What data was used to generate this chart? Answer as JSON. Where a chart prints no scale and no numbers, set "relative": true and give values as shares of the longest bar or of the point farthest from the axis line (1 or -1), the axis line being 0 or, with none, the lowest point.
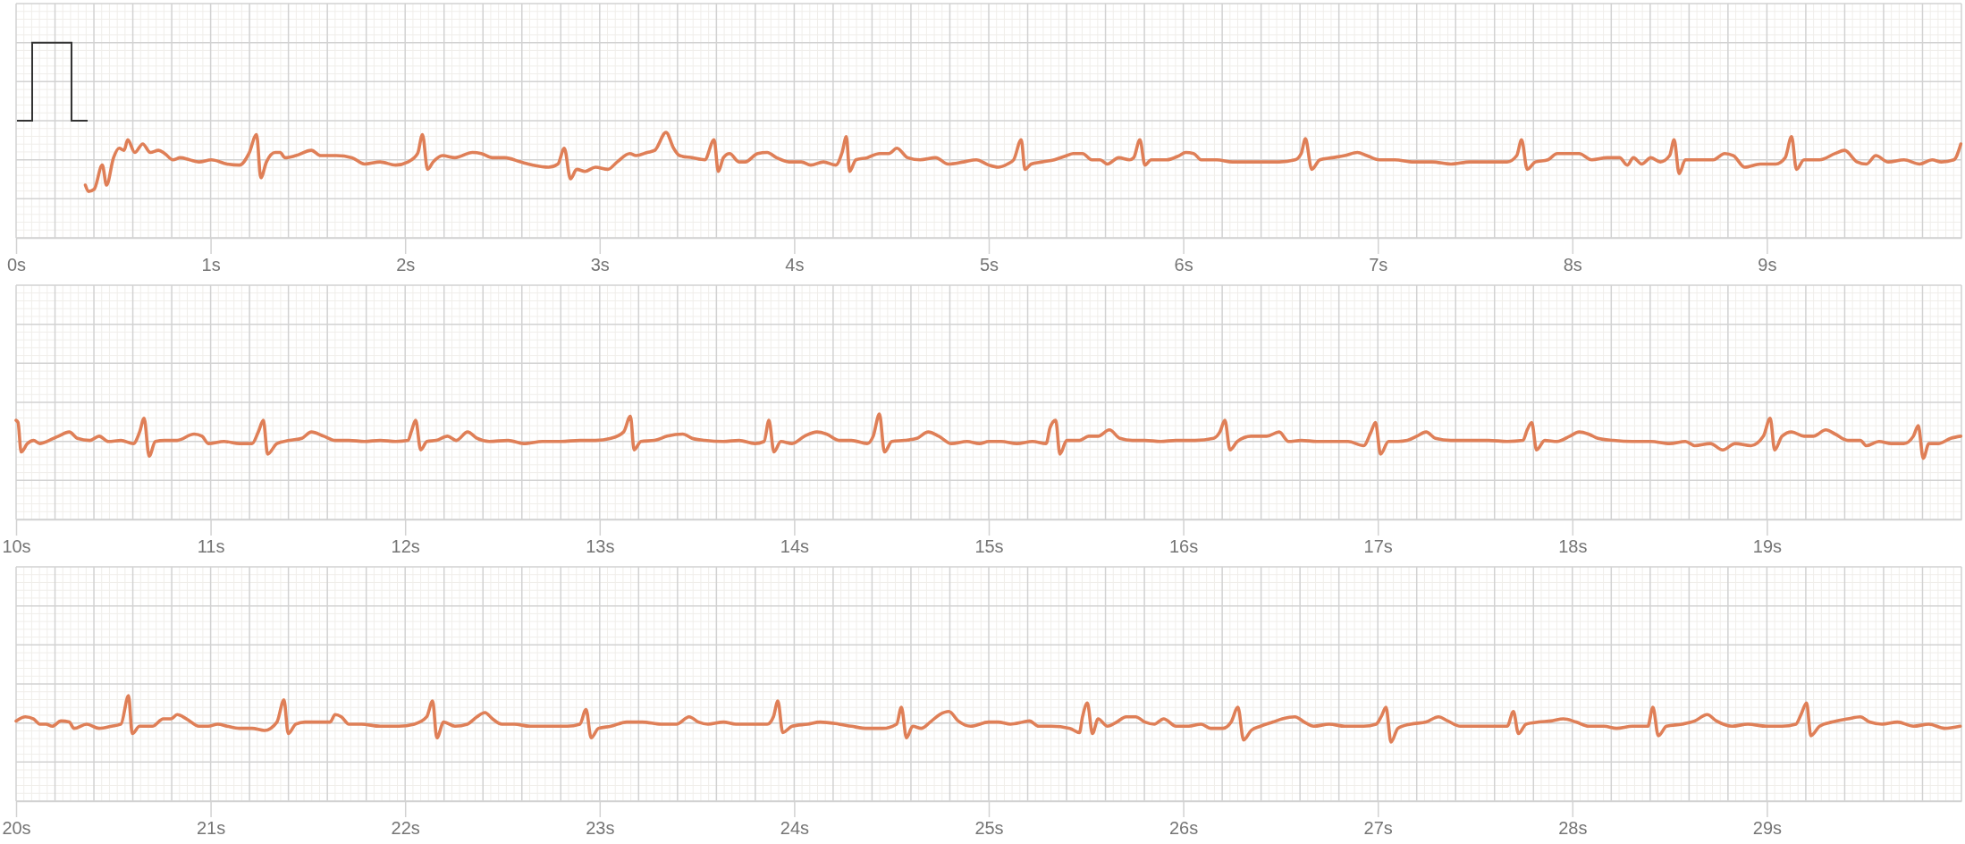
{
  "chart_data": [
    {
      "type": "line",
      "relative": true,
      "xlim": [
        0,
        10
      ],
      "grid": true,
      "xticks": [
        {
          "value": 0,
          "label": "0s"
        },
        {
          "value": 0.2,
          "label": null
        },
        {
          "value": 0.4,
          "label": null
        },
        {
          "value": 0.6,
          "label": null
        },
        {
          "value": 0.8,
          "label": null
        },
        {
          "value": 1,
          "label": "1s"
        },
        {
          "value": 1.2,
          "label": null
        },
        {
          "value": 1.4,
          "label": null
        },
        {
          "value": 1.6,
          "label": null
        },
        {
          "value": 1.8,
          "label": null
        },
        {
          "value": 2,
          "label": "2s"
        },
        {
          "value": 2.2,
          "label": null
        },
        {
          "value": 2.4,
          "label": null
        },
        {
          "value": 2.6,
          "label": null
        },
        {
          "value": 2.8,
          "label": null
        },
        {
          "value": 3,
          "label": "3s"
        },
        {
          "value": 3.2,
          "label": null
        },
        {
          "value": 3.4,
          "label": null
        },
        {
          "value": 3.6,
          "label": null
        },
        {
          "value": 3.8,
          "label": null
        },
        {
          "value": 4,
          "label": "4s"
        },
        {
          "value": 4.2,
          "label": null
        },
        {
          "value": 4.4,
          "label": null
        },
        {
          "value": 4.6,
          "label": null
        },
        {
          "value": 4.8,
          "label": null
        },
        {
          "value": 5,
          "label": "5s"
        },
        {
          "value": 5.2,
          "label": null
        },
        {
          "value": 5.4,
          "label": null
        },
        {
          "value": 5.6,
          "label": null
        },
        {
          "value": 5.8,
          "label": null
        },
        {
          "value": 6,
          "label": "6s"
        },
        {
          "value": 6.2,
          "label": null
        },
        {
          "value": 6.4,
          "label": null
        },
        {
          "value": 6.6,
          "label": null
        },
        {
          "value": 6.8,
          "label": null
        },
        {
          "value": 7,
          "label": "7s"
        },
        {
          "value": 7.2,
          "label": null
        },
        {
          "value": 7.4,
          "label": null
        },
        {
          "value": 7.6,
          "label": null
        },
        {
          "value": 7.8,
          "label": null
        },
        {
          "value": 8,
          "label": "8s"
        },
        {
          "value": 8.2,
          "label": null
        },
        {
          "value": 8.4,
          "label": null
        },
        {
          "value": 8.6,
          "label": null
        },
        {
          "value": 8.8,
          "label": null
        },
        {
          "value": 9,
          "label": "9s"
        },
        {
          "value": 9.2,
          "label": null
        },
        {
          "value": 9.4,
          "label": null
        },
        {
          "value": 9.6,
          "label": null
        },
        {
          "value": 9.8,
          "label": null
        },
        {
          "value": 10,
          "label": null
        }
      ],
      "series": [
        {
          "color": "#df7f57",
          "x": [
            0.356,
            0.372,
            0.401,
            0.443,
            0.465,
            0.501,
            0.53,
            0.555,
            0.574,
            0.61,
            0.651,
            0.69,
            0.732,
            0.764,
            0.806,
            0.844,
            0.892,
            0.94,
            1.004,
            1.085,
            1.149,
            1.197,
            1.236,
            1.258,
            1.287,
            1.332,
            1.357,
            1.383,
            1.438,
            1.518,
            1.566,
            1.646,
            1.727,
            1.791,
            1.871,
            1.951,
            2.015,
            2.064,
            2.089,
            2.115,
            2.144,
            2.192,
            2.256,
            2.346,
            2.391,
            2.449,
            2.513,
            2.593,
            2.657,
            2.737,
            2.785,
            2.818,
            2.85,
            2.882,
            2.924,
            2.978,
            3.042,
            3.09,
            3.155,
            3.187,
            3.245,
            3.283,
            3.341,
            3.38,
            3.411,
            3.476,
            3.54,
            3.588,
            3.61,
            3.636,
            3.668,
            3.716,
            3.748,
            3.812,
            3.861,
            3.909,
            3.973,
            4.037,
            4.085,
            4.15,
            4.214,
            4.246,
            4.268,
            4.285,
            4.317,
            4.375,
            4.439,
            4.487,
            4.528,
            4.583,
            4.647,
            4.727,
            4.791,
            4.871,
            4.936,
            5,
            5.048,
            5.096,
            5.128,
            5.167,
            5.186,
            5.218,
            5.273,
            5.337,
            5.401,
            5.434,
            5.482,
            5.53,
            5.572,
            5.61,
            5.668,
            5.723,
            5.745,
            5.777,
            5.803,
            5.835,
            5.915,
            5.979,
            6.012,
            6.053,
            6.092,
            6.172,
            6.252,
            6.333,
            6.413,
            6.493,
            6.574,
            6.606,
            6.628,
            6.66,
            6.702,
            6.766,
            6.83,
            6.895,
            6.943,
            7.007,
            7.087,
            7.184,
            7.28,
            7.376,
            7.473,
            7.569,
            7.665,
            7.714,
            7.739,
            7.768,
            7.81,
            7.874,
            7.922,
            7.987,
            8.035,
            8.099,
            8.179,
            8.243,
            8.282,
            8.314,
            8.356,
            8.404,
            8.452,
            8.5,
            8.523,
            8.549,
            8.581,
            8.645,
            8.725,
            8.783,
            8.828,
            8.886,
            8.966,
            9.046,
            9.094,
            9.127,
            9.152,
            9.191,
            9.271,
            9.351,
            9.399,
            9.464,
            9.512,
            9.56,
            9.624,
            9.705,
            9.785,
            9.849,
            9.897,
            9.961,
            9.997
          ],
          "values": [
            0.5,
            0.44,
            0.46,
            0.69,
            0.5,
            0.76,
            0.85,
            0.83,
            0.93,
            0.81,
            0.89,
            0.81,
            0.83,
            0.8,
            0.74,
            0.76,
            0.74,
            0.72,
            0.74,
            0.7,
            0.69,
            0.8,
            0.98,
            0.57,
            0.72,
            0.81,
            0.81,
            0.76,
            0.78,
            0.83,
            0.78,
            0.78,
            0.76,
            0.7,
            0.72,
            0.69,
            0.72,
            0.8,
            0.98,
            0.65,
            0.72,
            0.78,
            0.76,
            0.81,
            0.8,
            0.76,
            0.76,
            0.72,
            0.69,
            0.67,
            0.7,
            0.85,
            0.56,
            0.65,
            0.63,
            0.67,
            0.65,
            0.72,
            0.8,
            0.78,
            0.81,
            0.83,
            1,
            0.85,
            0.78,
            0.76,
            0.74,
            0.93,
            0.63,
            0.76,
            0.8,
            0.72,
            0.72,
            0.8,
            0.81,
            0.76,
            0.72,
            0.72,
            0.69,
            0.72,
            0.69,
            0.81,
            0.96,
            0.63,
            0.74,
            0.76,
            0.8,
            0.8,
            0.85,
            0.76,
            0.74,
            0.76,
            0.7,
            0.72,
            0.74,
            0.69,
            0.67,
            0.7,
            0.74,
            0.93,
            0.65,
            0.7,
            0.72,
            0.74,
            0.78,
            0.8,
            0.8,
            0.74,
            0.74,
            0.7,
            0.76,
            0.74,
            0.76,
            0.93,
            0.69,
            0.74,
            0.74,
            0.78,
            0.81,
            0.8,
            0.74,
            0.74,
            0.72,
            0.72,
            0.72,
            0.72,
            0.74,
            0.8,
            0.94,
            0.65,
            0.74,
            0.76,
            0.78,
            0.81,
            0.78,
            0.74,
            0.74,
            0.72,
            0.72,
            0.7,
            0.72,
            0.72,
            0.72,
            0.78,
            0.93,
            0.65,
            0.72,
            0.74,
            0.8,
            0.8,
            0.8,
            0.74,
            0.76,
            0.76,
            0.69,
            0.76,
            0.7,
            0.76,
            0.72,
            0.78,
            0.93,
            0.61,
            0.74,
            0.74,
            0.74,
            0.8,
            0.78,
            0.67,
            0.7,
            0.7,
            0.76,
            0.96,
            0.65,
            0.74,
            0.74,
            0.8,
            0.83,
            0.72,
            0.7,
            0.78,
            0.72,
            0.74,
            0.7,
            0.74,
            0.72,
            0.74,
            0.89
          ]
        }
      ]
    },
    {
      "type": "line",
      "relative": true,
      "xlim": [
        10,
        20
      ],
      "grid": true,
      "xticks": [
        {
          "value": 10,
          "label": "10s"
        },
        {
          "value": 10.2,
          "label": null
        },
        {
          "value": 10.4,
          "label": null
        },
        {
          "value": 10.6,
          "label": null
        },
        {
          "value": 10.8,
          "label": null
        },
        {
          "value": 11,
          "label": "11s"
        },
        {
          "value": 11.2,
          "label": null
        },
        {
          "value": 11.4,
          "label": null
        },
        {
          "value": 11.6,
          "label": null
        },
        {
          "value": 11.8,
          "label": null
        },
        {
          "value": 12,
          "label": "12s"
        },
        {
          "value": 12.2,
          "label": null
        },
        {
          "value": 12.4,
          "label": null
        },
        {
          "value": 12.6,
          "label": null
        },
        {
          "value": 12.8,
          "label": null
        },
        {
          "value": 13,
          "label": "13s"
        },
        {
          "value": 13.2,
          "label": null
        },
        {
          "value": 13.4,
          "label": null
        },
        {
          "value": 13.6,
          "label": null
        },
        {
          "value": 13.8,
          "label": null
        },
        {
          "value": 14,
          "label": "14s"
        },
        {
          "value": 14.2,
          "label": null
        },
        {
          "value": 14.4,
          "label": null
        },
        {
          "value": 14.6,
          "label": null
        },
        {
          "value": 14.8,
          "label": null
        },
        {
          "value": 15,
          "label": "15s"
        },
        {
          "value": 15.2,
          "label": null
        },
        {
          "value": 15.4,
          "label": null
        },
        {
          "value": 15.6,
          "label": null
        },
        {
          "value": 15.8,
          "label": null
        },
        {
          "value": 16,
          "label": "16s"
        },
        {
          "value": 16.2,
          "label": null
        },
        {
          "value": 16.4,
          "label": null
        },
        {
          "value": 16.6,
          "label": null
        },
        {
          "value": 16.8,
          "label": null
        },
        {
          "value": 17,
          "label": "17s"
        },
        {
          "value": 17.2,
          "label": null
        },
        {
          "value": 17.4,
          "label": null
        },
        {
          "value": 17.6,
          "label": null
        },
        {
          "value": 17.8,
          "label": null
        },
        {
          "value": 18,
          "label": "18s"
        },
        {
          "value": 18.2,
          "label": null
        },
        {
          "value": 18.4,
          "label": null
        },
        {
          "value": 18.6,
          "label": null
        },
        {
          "value": 18.8,
          "label": null
        },
        {
          "value": 19,
          "label": "19s"
        },
        {
          "value": 19.2,
          "label": null
        },
        {
          "value": 19.4,
          "label": null
        },
        {
          "value": 19.6,
          "label": null
        },
        {
          "value": 19.8,
          "label": null
        },
        {
          "value": 20,
          "label": null
        }
      ],
      "series": [
        {
          "color": "#df7f57",
          "x": [
            10,
            10.01,
            10.026,
            10.058,
            10.09,
            10.122,
            10.17,
            10.218,
            10.273,
            10.315,
            10.379,
            10.427,
            10.475,
            10.539,
            10.603,
            10.635,
            10.658,
            10.684,
            10.716,
            10.764,
            10.828,
            10.915,
            10.956,
            10.988,
            11.069,
            11.149,
            11.213,
            11.245,
            11.271,
            11.293,
            11.341,
            11.405,
            11.469,
            11.518,
            11.582,
            11.64,
            11.711,
            11.791,
            11.871,
            11.951,
            12.015,
            12.031,
            12.054,
            12.08,
            12.112,
            12.16,
            12.218,
            12.263,
            12.321,
            12.369,
            12.433,
            12.529,
            12.609,
            12.706,
            12.802,
            12.898,
            12.978,
            13.058,
            13.123,
            13.158,
            13.177,
            13.212,
            13.282,
            13.347,
            13.427,
            13.475,
            13.54,
            13.636,
            13.716,
            13.797,
            13.845,
            13.87,
            13.896,
            13.931,
            13.989,
            14.053,
            14.117,
            14.166,
            14.23,
            14.294,
            14.375,
            14.406,
            14.438,
            14.464,
            14.502,
            14.567,
            14.631,
            14.689,
            14.743,
            14.808,
            14.888,
            14.952,
            15,
            15.064,
            15.145,
            15.225,
            15.295,
            15.315,
            15.344,
            15.366,
            15.401,
            15.466,
            15.514,
            15.562,
            15.62,
            15.674,
            15.739,
            15.803,
            15.883,
            15.963,
            16.06,
            16.156,
            16.188,
            16.214,
            16.24,
            16.278,
            16.349,
            16.429,
            16.493,
            16.541,
            16.606,
            16.686,
            16.766,
            16.847,
            16.927,
            16.965,
            16.988,
            17.014,
            17.055,
            17.103,
            17.152,
            17.2,
            17.248,
            17.296,
            17.376,
            17.473,
            17.569,
            17.665,
            17.746,
            17.768,
            17.791,
            17.816,
            17.858,
            17.922,
            17.987,
            18.035,
            18.083,
            18.131,
            18.211,
            18.308,
            18.404,
            18.5,
            18.581,
            18.629,
            18.709,
            18.773,
            18.837,
            18.918,
            18.982,
            19.017,
            19.04,
            19.078,
            19.127,
            19.191,
            19.239,
            19.303,
            19.351,
            19.416,
            19.48,
            19.512,
            19.576,
            19.64,
            19.704,
            19.753,
            19.778,
            19.804,
            19.833,
            19.881,
            19.945,
            19.997
          ],
          "values": [
            0.94,
            0.92,
            0.64,
            0.72,
            0.75,
            0.72,
            0.75,
            0.79,
            0.83,
            0.77,
            0.75,
            0.79,
            0.74,
            0.75,
            0.72,
            0.83,
            0.96,
            0.6,
            0.74,
            0.75,
            0.75,
            0.81,
            0.79,
            0.72,
            0.74,
            0.72,
            0.72,
            0.83,
            0.94,
            0.62,
            0.72,
            0.75,
            0.77,
            0.83,
            0.79,
            0.75,
            0.75,
            0.74,
            0.75,
            0.74,
            0.75,
            0.83,
            0.94,
            0.66,
            0.74,
            0.75,
            0.79,
            0.75,
            0.83,
            0.77,
            0.74,
            0.75,
            0.72,
            0.74,
            0.74,
            0.75,
            0.75,
            0.77,
            0.83,
            0.98,
            0.66,
            0.74,
            0.75,
            0.79,
            0.81,
            0.77,
            0.75,
            0.74,
            0.75,
            0.72,
            0.74,
            0.94,
            0.64,
            0.74,
            0.72,
            0.79,
            0.83,
            0.81,
            0.75,
            0.75,
            0.72,
            0.79,
            1,
            0.64,
            0.74,
            0.75,
            0.77,
            0.83,
            0.79,
            0.72,
            0.74,
            0.72,
            0.74,
            0.74,
            0.72,
            0.74,
            0.72,
            0.87,
            0.94,
            0.62,
            0.75,
            0.75,
            0.79,
            0.79,
            0.85,
            0.77,
            0.75,
            0.75,
            0.74,
            0.75,
            0.75,
            0.77,
            0.83,
            0.94,
            0.66,
            0.74,
            0.79,
            0.79,
            0.83,
            0.74,
            0.75,
            0.74,
            0.74,
            0.74,
            0.7,
            0.83,
            0.92,
            0.62,
            0.74,
            0.74,
            0.75,
            0.79,
            0.83,
            0.77,
            0.75,
            0.75,
            0.75,
            0.74,
            0.75,
            0.85,
            0.92,
            0.66,
            0.75,
            0.74,
            0.79,
            0.83,
            0.81,
            0.77,
            0.75,
            0.74,
            0.74,
            0.72,
            0.74,
            0.7,
            0.72,
            0.66,
            0.72,
            0.7,
            0.79,
            0.96,
            0.66,
            0.79,
            0.83,
            0.79,
            0.79,
            0.85,
            0.81,
            0.75,
            0.75,
            0.7,
            0.74,
            0.72,
            0.72,
            0.79,
            0.89,
            0.58,
            0.72,
            0.72,
            0.77,
            0.79
          ]
        }
      ]
    },
    {
      "type": "line",
      "relative": true,
      "xlim": [
        20,
        30
      ],
      "grid": true,
      "xticks": [
        {
          "value": 20,
          "label": "20s"
        },
        {
          "value": 20.2,
          "label": null
        },
        {
          "value": 20.4,
          "label": null
        },
        {
          "value": 20.6,
          "label": null
        },
        {
          "value": 20.8,
          "label": null
        },
        {
          "value": 21,
          "label": "21s"
        },
        {
          "value": 21.2,
          "label": null
        },
        {
          "value": 21.4,
          "label": null
        },
        {
          "value": 21.6,
          "label": null
        },
        {
          "value": 21.8,
          "label": null
        },
        {
          "value": 22,
          "label": "22s"
        },
        {
          "value": 22.2,
          "label": null
        },
        {
          "value": 22.4,
          "label": null
        },
        {
          "value": 22.6,
          "label": null
        },
        {
          "value": 22.8,
          "label": null
        },
        {
          "value": 23,
          "label": "23s"
        },
        {
          "value": 23.2,
          "label": null
        },
        {
          "value": 23.4,
          "label": null
        },
        {
          "value": 23.6,
          "label": null
        },
        {
          "value": 23.8,
          "label": null
        },
        {
          "value": 24,
          "label": "24s"
        },
        {
          "value": 24.2,
          "label": null
        },
        {
          "value": 24.4,
          "label": null
        },
        {
          "value": 24.6,
          "label": null
        },
        {
          "value": 24.8,
          "label": null
        },
        {
          "value": 25,
          "label": "25s"
        },
        {
          "value": 25.2,
          "label": null
        },
        {
          "value": 25.4,
          "label": null
        },
        {
          "value": 25.6,
          "label": null
        },
        {
          "value": 25.8,
          "label": null
        },
        {
          "value": 26,
          "label": "26s"
        },
        {
          "value": 26.2,
          "label": null
        },
        {
          "value": 26.4,
          "label": null
        },
        {
          "value": 26.6,
          "label": null
        },
        {
          "value": 26.8,
          "label": null
        },
        {
          "value": 27,
          "label": "27s"
        },
        {
          "value": 27.2,
          "label": null
        },
        {
          "value": 27.4,
          "label": null
        },
        {
          "value": 27.6,
          "label": null
        },
        {
          "value": 27.8,
          "label": null
        },
        {
          "value": 28,
          "label": "28s"
        },
        {
          "value": 28.2,
          "label": null
        },
        {
          "value": 28.4,
          "label": null
        },
        {
          "value": 28.6,
          "label": null
        },
        {
          "value": 28.8,
          "label": null
        },
        {
          "value": 29,
          "label": "29s"
        },
        {
          "value": 29.2,
          "label": null
        },
        {
          "value": 29.4,
          "label": null
        },
        {
          "value": 29.6,
          "label": null
        },
        {
          "value": 29.8,
          "label": null
        },
        {
          "value": 30,
          "label": null
        }
      ],
      "series": [
        {
          "color": "#df7f57",
          "x": [
            20,
            20.048,
            20.09,
            20.122,
            20.154,
            20.186,
            20.231,
            20.273,
            20.298,
            20.363,
            20.427,
            20.491,
            20.539,
            20.578,
            20.597,
            20.635,
            20.7,
            20.757,
            20.796,
            20.828,
            20.876,
            20.94,
            20.988,
            21.037,
            21.085,
            21.149,
            21.213,
            21.277,
            21.341,
            21.377,
            21.399,
            21.438,
            21.486,
            21.55,
            21.614,
            21.64,
            21.672,
            21.711,
            21.775,
            21.871,
            21.967,
            22.047,
            22.111,
            22.141,
            22.163,
            22.198,
            22.256,
            22.32,
            22.369,
            22.41,
            22.449,
            22.497,
            22.561,
            22.641,
            22.737,
            22.834,
            22.898,
            22.93,
            22.956,
            22.994,
            23.058,
            23.139,
            23.219,
            23.315,
            23.395,
            23.46,
            23.508,
            23.556,
            23.636,
            23.7,
            23.78,
            23.861,
            23.893,
            23.916,
            23.941,
            23.989,
            24.069,
            24.134,
            24.23,
            24.294,
            24.375,
            24.455,
            24.526,
            24.551,
            24.577,
            24.609,
            24.653,
            24.699,
            24.747,
            24.795,
            24.843,
            24.907,
            25,
            25.048,
            25.112,
            25.177,
            25.209,
            25.257,
            25.321,
            25.417,
            25.466,
            25.482,
            25.507,
            25.533,
            25.562,
            25.61,
            25.658,
            25.706,
            25.755,
            25.803,
            25.851,
            25.899,
            25.963,
            26.028,
            26.092,
            26.14,
            26.204,
            26.246,
            26.281,
            26.31,
            26.349,
            26.397,
            26.461,
            26.509,
            26.574,
            26.622,
            26.67,
            26.75,
            26.83,
            26.927,
            26.991,
            27.017,
            27.042,
            27.068,
            27.103,
            27.168,
            27.248,
            27.312,
            27.36,
            27.425,
            27.505,
            27.585,
            27.665,
            27.697,
            27.723,
            27.762,
            27.826,
            27.89,
            27.954,
            28.019,
            28.083,
            28.163,
            28.227,
            28.308,
            28.388,
            28.414,
            28.442,
            28.484,
            28.564,
            28.629,
            28.693,
            28.741,
            28.821,
            28.902,
            28.998,
            29.078,
            29.149,
            29.175,
            29.204,
            29.226,
            29.271,
            29.335,
            29.416,
            29.48,
            29.528,
            29.592,
            29.672,
            29.753,
            29.833,
            29.913,
            29.994
          ],
          "values": [
            0.76,
            0.8,
            0.78,
            0.73,
            0.73,
            0.71,
            0.76,
            0.75,
            0.69,
            0.73,
            0.69,
            0.71,
            0.73,
            1,
            0.64,
            0.71,
            0.71,
            0.78,
            0.78,
            0.82,
            0.78,
            0.71,
            0.71,
            0.73,
            0.71,
            0.69,
            0.69,
            0.67,
            0.75,
            0.96,
            0.64,
            0.73,
            0.75,
            0.75,
            0.75,
            0.82,
            0.8,
            0.73,
            0.73,
            0.71,
            0.71,
            0.73,
            0.8,
            0.95,
            0.6,
            0.75,
            0.71,
            0.73,
            0.8,
            0.84,
            0.78,
            0.73,
            0.73,
            0.71,
            0.71,
            0.71,
            0.73,
            0.87,
            0.6,
            0.69,
            0.71,
            0.75,
            0.75,
            0.73,
            0.73,
            0.8,
            0.75,
            0.73,
            0.75,
            0.73,
            0.73,
            0.73,
            0.8,
            0.95,
            0.65,
            0.71,
            0.73,
            0.75,
            0.73,
            0.71,
            0.69,
            0.69,
            0.73,
            0.89,
            0.6,
            0.71,
            0.69,
            0.75,
            0.82,
            0.85,
            0.76,
            0.71,
            0.75,
            0.75,
            0.73,
            0.75,
            0.76,
            0.71,
            0.71,
            0.69,
            0.65,
            0.8,
            0.93,
            0.64,
            0.78,
            0.71,
            0.75,
            0.8,
            0.8,
            0.75,
            0.73,
            0.78,
            0.71,
            0.71,
            0.73,
            0.69,
            0.69,
            0.75,
            0.89,
            0.58,
            0.67,
            0.71,
            0.75,
            0.78,
            0.8,
            0.75,
            0.71,
            0.73,
            0.71,
            0.71,
            0.73,
            0.8,
            0.89,
            0.56,
            0.69,
            0.73,
            0.75,
            0.8,
            0.76,
            0.71,
            0.71,
            0.71,
            0.71,
            0.85,
            0.64,
            0.73,
            0.75,
            0.76,
            0.78,
            0.75,
            0.71,
            0.71,
            0.69,
            0.71,
            0.71,
            0.89,
            0.62,
            0.71,
            0.73,
            0.76,
            0.82,
            0.76,
            0.71,
            0.73,
            0.71,
            0.71,
            0.73,
            0.82,
            0.93,
            0.62,
            0.71,
            0.75,
            0.78,
            0.8,
            0.75,
            0.73,
            0.75,
            0.71,
            0.73,
            0.69,
            0.71
          ]
        }
      ]
    }
  ]
}
